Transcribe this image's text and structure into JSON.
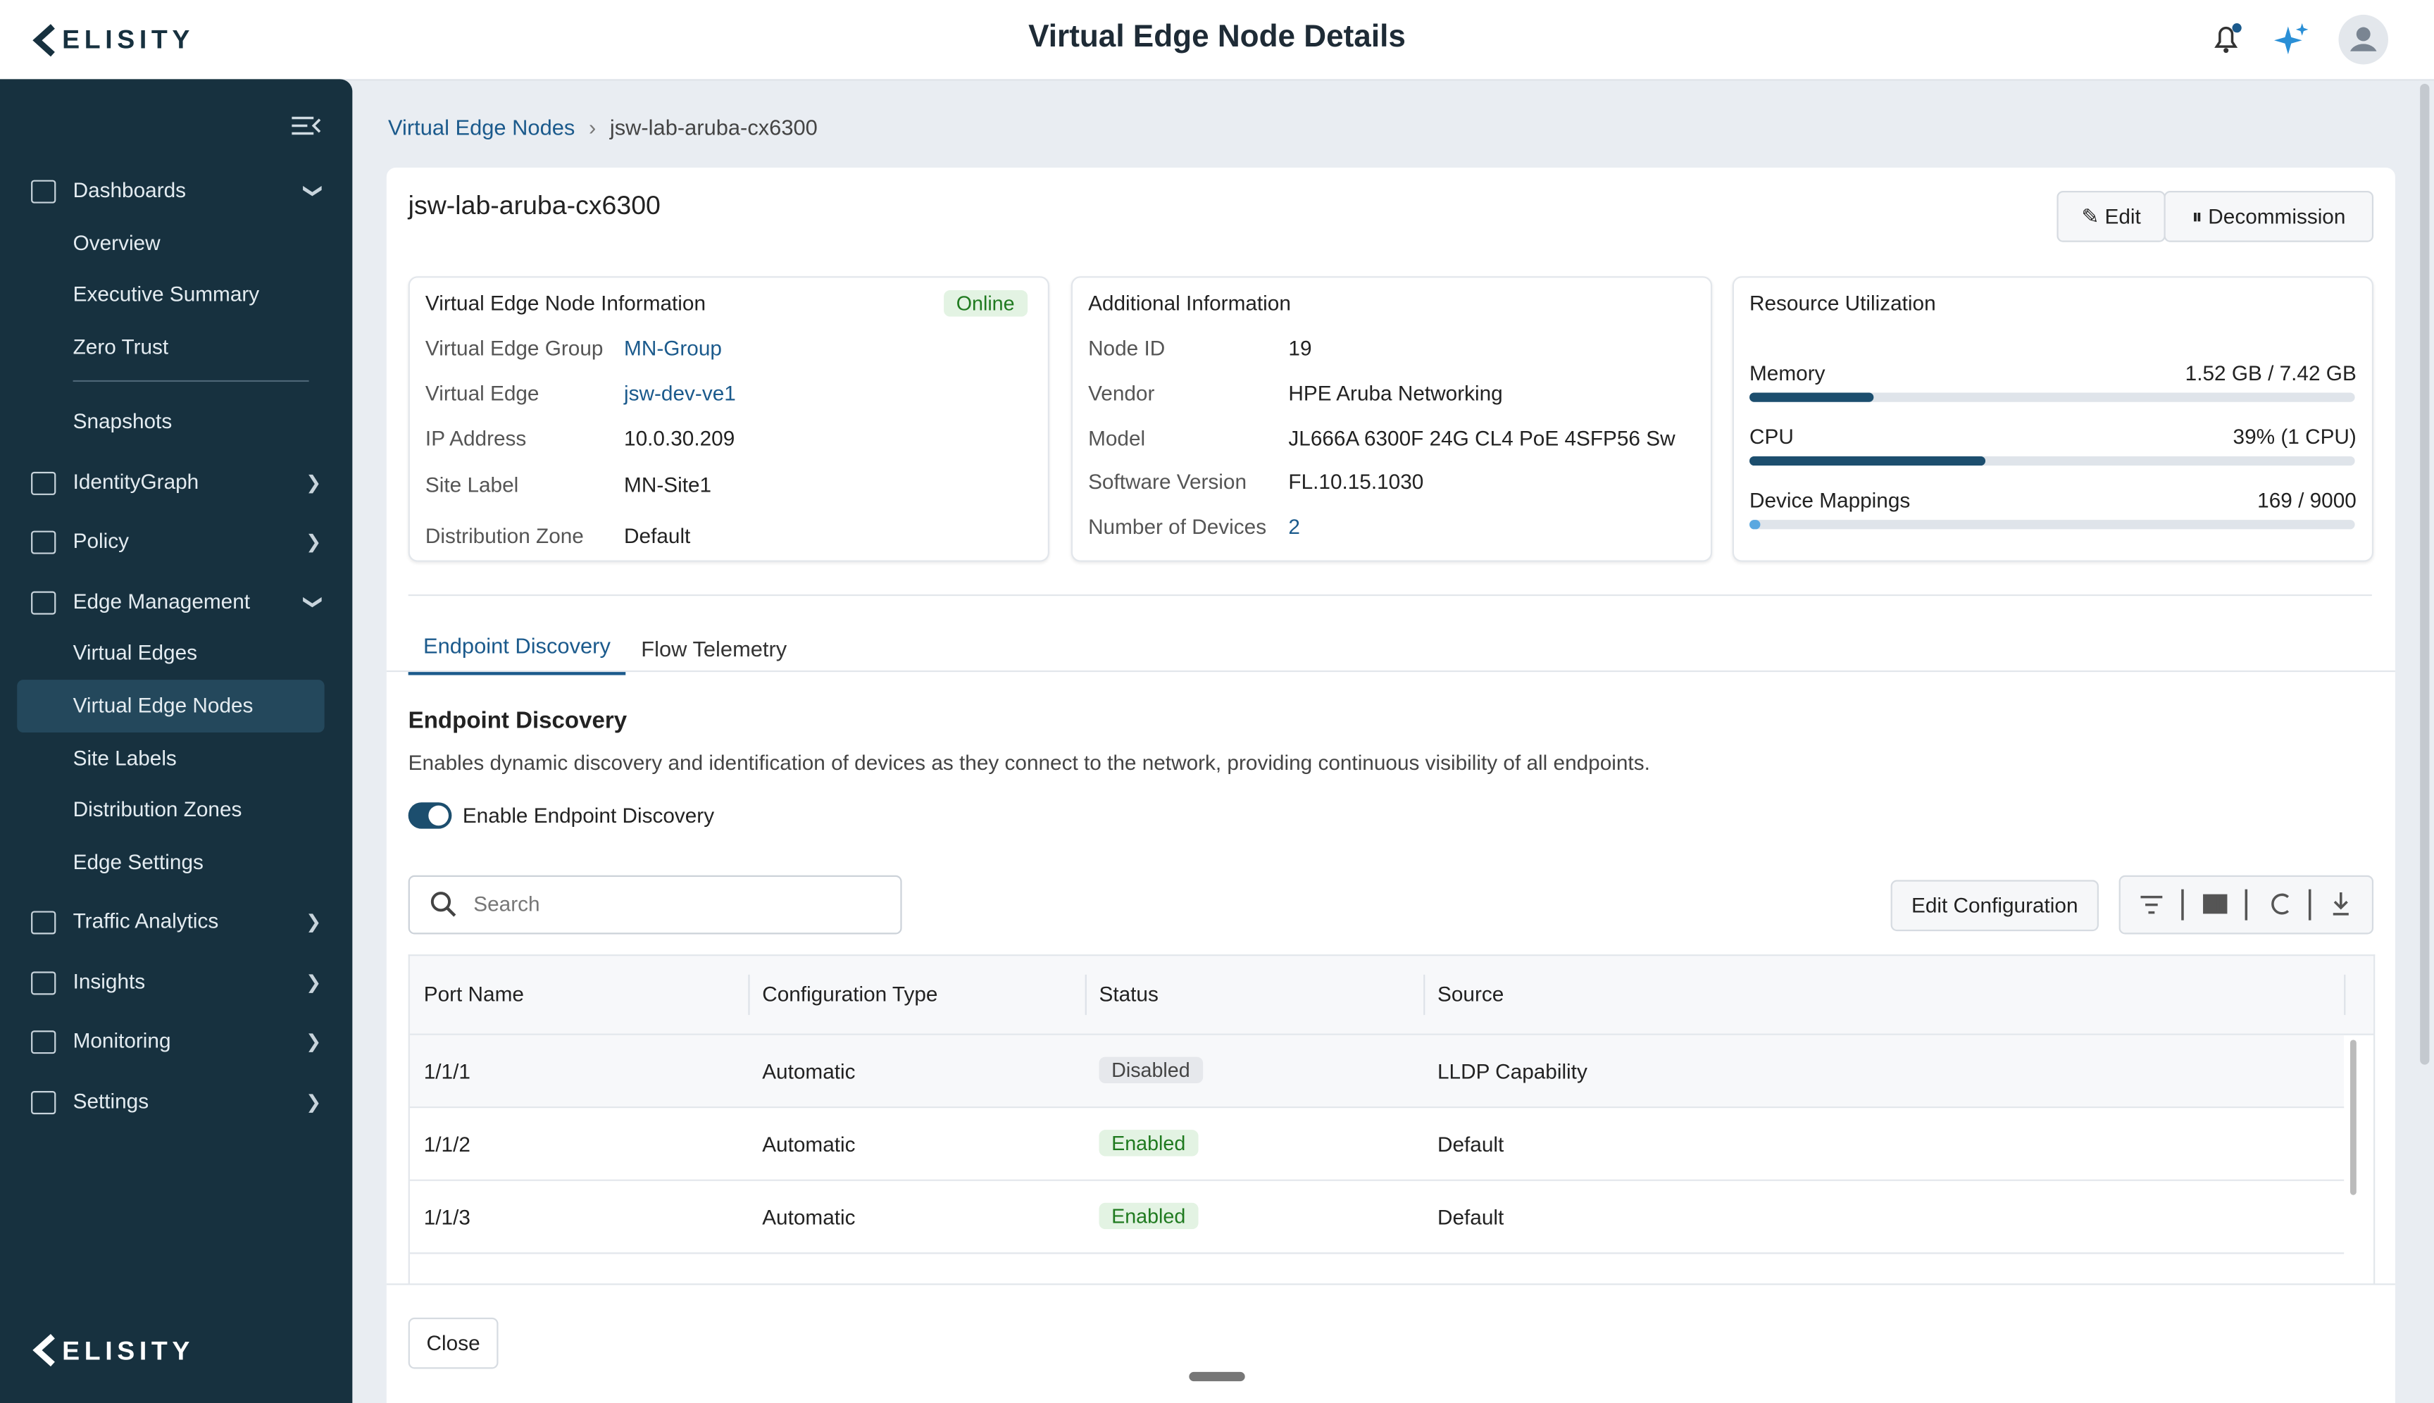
{
  "header": {
    "logo": "ELISITY",
    "title": "Virtual Edge Node Details"
  },
  "sidebar": {
    "nav": [
      {
        "label": "Dashboards",
        "children": [
          "Overview",
          "Executive Summary",
          "Zero Trust",
          "Snapshots"
        ]
      },
      {
        "label": "IdentityGraph"
      },
      {
        "label": "Policy"
      },
      {
        "label": "Edge Management",
        "children": [
          "Virtual Edges",
          "Virtual Edge Nodes",
          "Site Labels",
          "Distribution Zones",
          "Edge Settings"
        ]
      },
      {
        "label": "Traffic Analytics"
      },
      {
        "label": "Insights"
      },
      {
        "label": "Monitoring"
      },
      {
        "label": "Settings"
      }
    ],
    "footer_logo": "ELISITY"
  },
  "breadcrumb": [
    "Virtual Edge Nodes",
    "jsw-lab-aruba-cx6300"
  ],
  "node": {
    "name": "jsw-lab-aruba-cx6300",
    "buttons": [
      "Edit",
      "Decommission"
    ]
  },
  "info": {
    "title": "Virtual Edge Node Information",
    "status": "Online",
    "rows": [
      [
        "Virtual Edge Group",
        "MN-Group"
      ],
      [
        "Virtual Edge",
        "jsw-dev-ve1"
      ],
      [
        "IP Address",
        "10.0.30.209"
      ],
      [
        "Site Label",
        "MN-Site1"
      ],
      [
        "Distribution Zone",
        "Default"
      ]
    ]
  },
  "additional": {
    "title": "Additional Information",
    "rows": [
      [
        "Node ID",
        "19"
      ],
      [
        "Vendor",
        "HPE Aruba Networking"
      ],
      [
        "Model",
        "JL666A 6300F 24G CL4 PoE 4SFP56 Sw"
      ],
      [
        "Software Version",
        "FL.10.15.1030"
      ],
      [
        "Number of Devices",
        "2"
      ]
    ]
  },
  "resources": {
    "title": "Resource Utilization",
    "items": [
      {
        "label": "Memory",
        "value_label": "1.52 GB / 7.42 GB",
        "used": 1.52,
        "total": 7.42
      },
      {
        "label": "CPU",
        "value_label": "39% (1 CPU)",
        "percent": 39
      },
      {
        "label": "Device Mappings",
        "value_label": "169 / 9000",
        "used": 169,
        "total": 9000
      }
    ]
  },
  "tabs": [
    "Endpoint Discovery",
    "Flow Telemetry"
  ],
  "section": {
    "title": "Endpoint Discovery",
    "description": "Enables dynamic discovery and identification of devices as they connect to the network, providing continuous visibility of all endpoints.",
    "toggle": "Enable Endpoint Discovery"
  },
  "table": {
    "search_placeholder": "Search",
    "edit_button": "Edit Configuration",
    "columns": [
      "Port Name",
      "Configuration Type",
      "Status",
      "Source"
    ],
    "rows": [
      [
        "1/1/1",
        "Automatic",
        "Disabled",
        "LLDP Capability"
      ],
      [
        "1/1/2",
        "Automatic",
        "Enabled",
        "Default"
      ],
      [
        "1/1/3",
        "Automatic",
        "Enabled",
        "Default"
      ]
    ]
  },
  "close": "Close"
}
